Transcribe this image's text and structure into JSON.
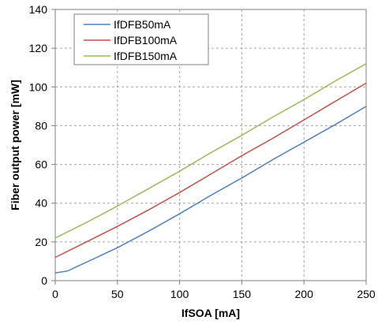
{
  "chart_data": {
    "type": "line",
    "title": "",
    "xlabel": "IfSOA [mA]",
    "ylabel": "Fiber output power [mW]",
    "xlim": [
      0,
      250
    ],
    "ylim": [
      0,
      140
    ],
    "xticks": [
      0,
      50,
      100,
      150,
      200,
      250
    ],
    "yticks": [
      0,
      20,
      40,
      60,
      80,
      100,
      120,
      140
    ],
    "grid": "dashed",
    "legend_position": "top-left",
    "series": [
      {
        "name": "IfDFB50mA",
        "color": "#4f81bd",
        "points": [
          [
            0,
            4
          ],
          [
            10,
            5
          ],
          [
            20,
            8
          ],
          [
            30,
            11
          ],
          [
            40,
            14
          ],
          [
            50,
            17
          ],
          [
            75,
            25.5
          ],
          [
            100,
            34.5
          ],
          [
            125,
            44
          ],
          [
            150,
            53
          ],
          [
            175,
            62.5
          ],
          [
            200,
            71.5
          ],
          [
            225,
            80.5
          ],
          [
            250,
            90
          ]
        ]
      },
      {
        "name": "IfDFB100mA",
        "color": "#c0504d",
        "points": [
          [
            0,
            12
          ],
          [
            25,
            20
          ],
          [
            50,
            28
          ],
          [
            75,
            36.5
          ],
          [
            100,
            45.5
          ],
          [
            125,
            55
          ],
          [
            150,
            64.5
          ],
          [
            175,
            73.5
          ],
          [
            200,
            83
          ],
          [
            225,
            92.5
          ],
          [
            250,
            102
          ]
        ]
      },
      {
        "name": "IfDFB150mA",
        "color": "#9bbb59",
        "points": [
          [
            0,
            22
          ],
          [
            25,
            30
          ],
          [
            50,
            38.5
          ],
          [
            75,
            47.5
          ],
          [
            100,
            56.5
          ],
          [
            125,
            66
          ],
          [
            150,
            75
          ],
          [
            175,
            84.5
          ],
          [
            200,
            93.5
          ],
          [
            225,
            103
          ],
          [
            250,
            112
          ]
        ]
      }
    ]
  }
}
